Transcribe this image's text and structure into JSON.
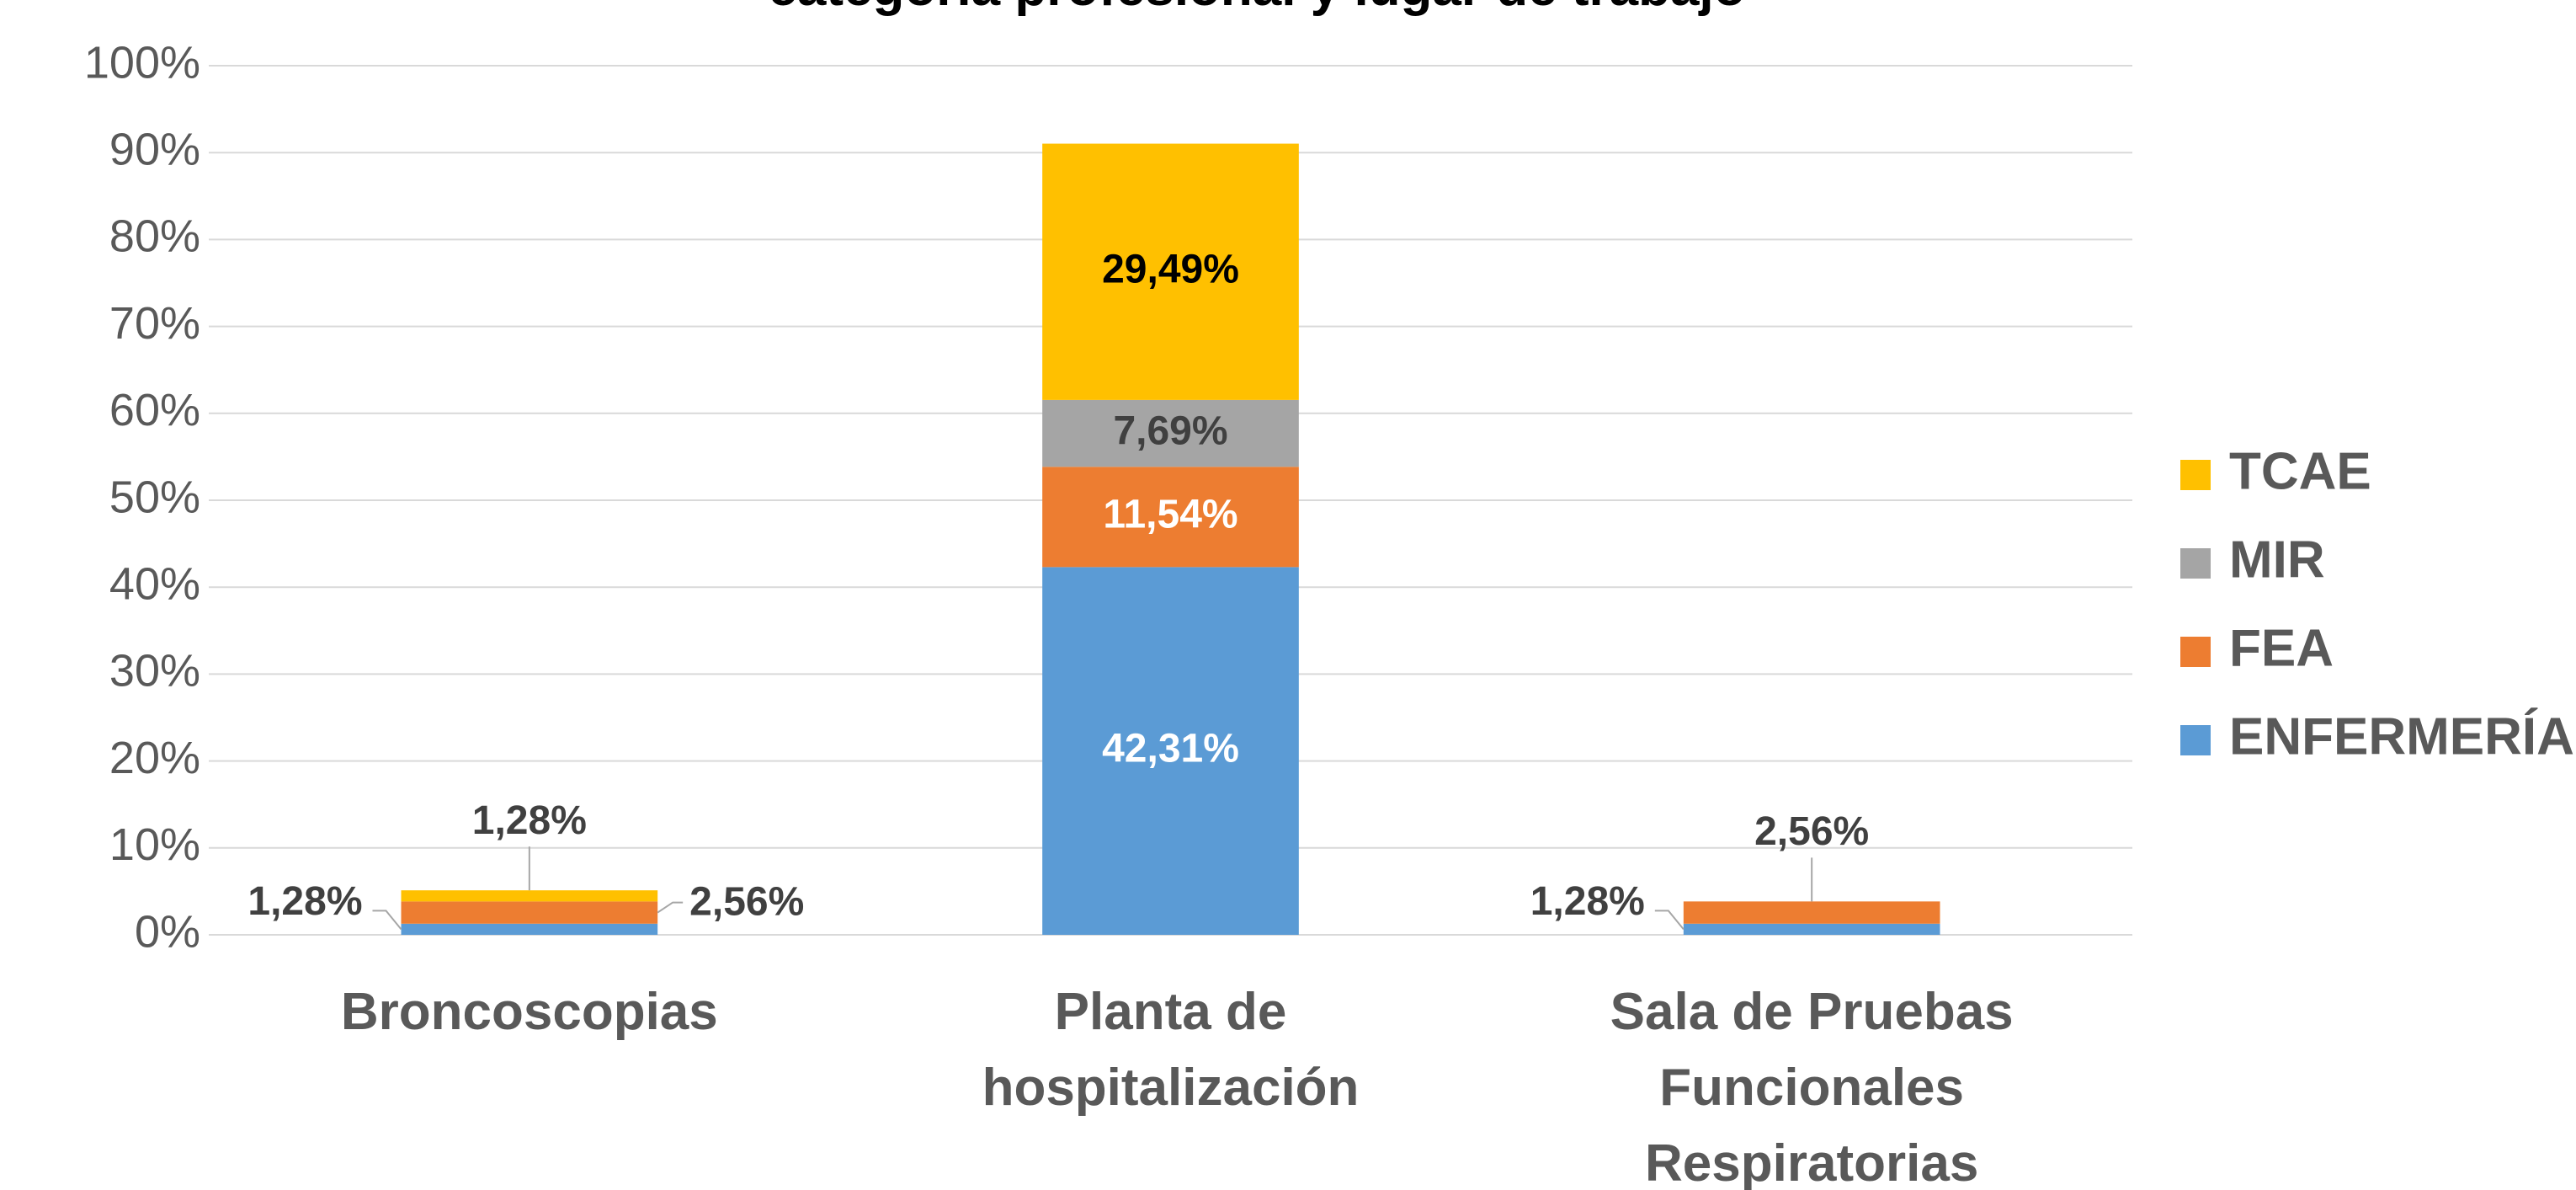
{
  "chart_data": {
    "type": "stacked_bar",
    "title": "categoría profesional y lugar de trabajo",
    "categories": [
      "Broncoscopias",
      "Planta de hospitalización",
      "Sala de Pruebas Funcionales Respiratorias"
    ],
    "series": [
      {
        "name": "ENFERMERÍA",
        "color": "#5b9bd5",
        "label_color": "#ffffff",
        "values": [
          1.28,
          42.31,
          1.28
        ],
        "value_labels": [
          "1,28%",
          "42,31%",
          "1,28%"
        ]
      },
      {
        "name": "FEA",
        "color": "#ed7d31",
        "label_color": "#ffffff",
        "values": [
          2.56,
          11.54,
          2.56
        ],
        "value_labels": [
          "2,56%",
          "11,54%",
          "2,56%"
        ]
      },
      {
        "name": "MIR",
        "color": "#a5a5a5",
        "label_color": "#404040",
        "values": [
          null,
          7.69,
          null
        ],
        "value_labels": [
          null,
          "7,69%",
          null
        ]
      },
      {
        "name": "TCAE",
        "color": "#ffc000",
        "label_color": "#000000",
        "values": [
          1.28,
          29.49,
          null
        ],
        "value_labels": [
          "1,28%",
          "29,49%",
          null
        ]
      }
    ],
    "ylim": [
      0,
      100
    ],
    "yticks": [
      {
        "value": 0,
        "label": "0%"
      },
      {
        "value": 10,
        "label": "10%"
      },
      {
        "value": 20,
        "label": "20%"
      },
      {
        "value": 30,
        "label": "30%"
      },
      {
        "value": 40,
        "label": "40%"
      },
      {
        "value": 50,
        "label": "50%"
      },
      {
        "value": 60,
        "label": "60%"
      },
      {
        "value": 70,
        "label": "70%"
      },
      {
        "value": 80,
        "label": "80%"
      },
      {
        "value": 90,
        "label": "90%"
      },
      {
        "value": 100,
        "label": "100%"
      }
    ],
    "grid": true,
    "legend": "right"
  }
}
